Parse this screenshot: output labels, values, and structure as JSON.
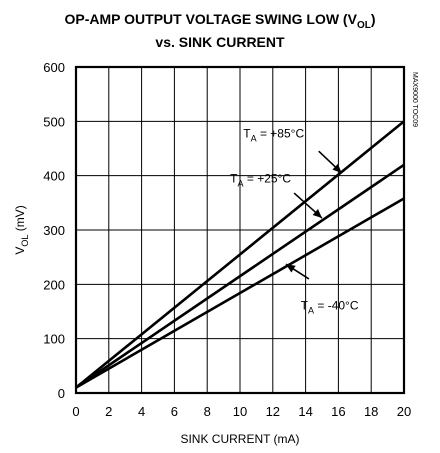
{
  "chart_data": {
    "type": "line",
    "title_line1": "OP-AMP OUTPUT VOLTAGE SWING LOW (V",
    "title_sub": "OL",
    "title_close": ")",
    "title_line2": "vs. SINK CURRENT",
    "xlabel": "SINK CURRENT (mA)",
    "ylabel_main": "V",
    "ylabel_sub": "OL",
    "ylabel_unit": " (mV)",
    "xlim": [
      0,
      20
    ],
    "ylim": [
      0,
      600
    ],
    "xticks": [
      0,
      2,
      4,
      6,
      8,
      10,
      12,
      14,
      16,
      18,
      20
    ],
    "yticks": [
      0,
      100,
      200,
      300,
      400,
      500,
      600
    ],
    "grid": true,
    "watermark": "MAX9000 TOC09",
    "series": [
      {
        "name": "T_A = +85°C",
        "label_main": "T",
        "label_sub": "A",
        "label_rest": " = +85°C",
        "x": [
          0,
          20
        ],
        "y": [
          10,
          500
        ]
      },
      {
        "name": "T_A = +25°C",
        "label_main": "T",
        "label_sub": "A",
        "label_rest": " = +25°C",
        "x": [
          0,
          20
        ],
        "y": [
          10,
          420
        ]
      },
      {
        "name": "T_A = -40°C",
        "label_main": "T",
        "label_sub": "A",
        "label_rest": " = -40°C",
        "x": [
          0,
          20
        ],
        "y": [
          10,
          358
        ]
      }
    ]
  }
}
